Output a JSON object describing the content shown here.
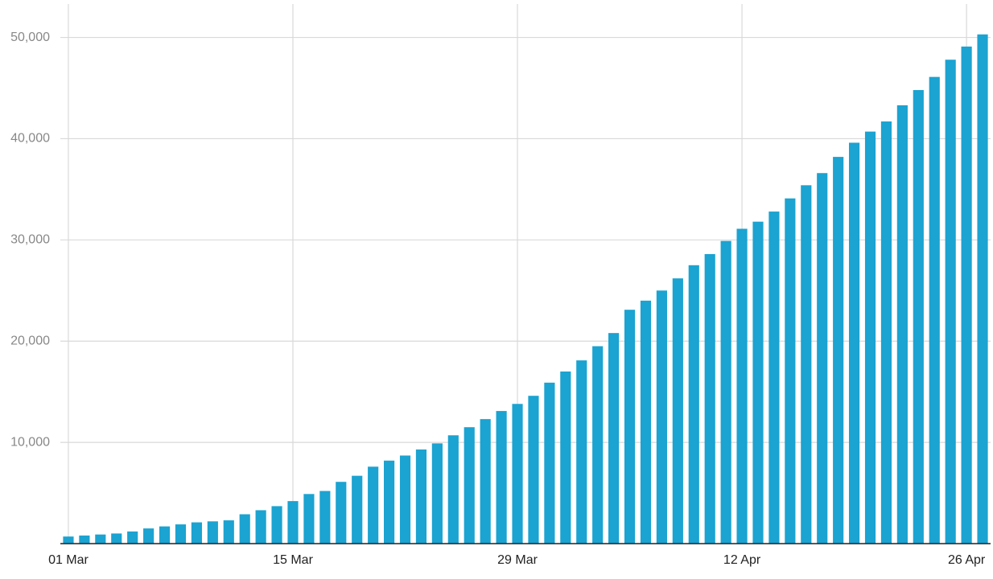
{
  "chart_data": {
    "type": "bar",
    "categories": [
      "01 Mar",
      null,
      null,
      null,
      null,
      null,
      null,
      null,
      null,
      null,
      null,
      null,
      null,
      null,
      "15 Mar",
      null,
      null,
      null,
      null,
      null,
      null,
      null,
      null,
      null,
      null,
      null,
      null,
      null,
      "29 Mar",
      null,
      null,
      null,
      null,
      null,
      null,
      null,
      null,
      null,
      null,
      null,
      null,
      null,
      "12 Apr",
      null,
      null,
      null,
      null,
      null,
      null,
      null,
      null,
      null,
      null,
      null,
      null,
      null,
      "26 Apr",
      null
    ],
    "values": [
      700,
      800,
      900,
      1000,
      1200,
      1500,
      1700,
      1900,
      2100,
      2200,
      2300,
      2900,
      3300,
      3700,
      4200,
      4900,
      5200,
      6100,
      6700,
      7600,
      8200,
      8700,
      9300,
      9900,
      10700,
      11500,
      12300,
      13100,
      13800,
      14600,
      15900,
      17000,
      18100,
      19500,
      20800,
      23100,
      24000,
      25000,
      26200,
      27500,
      28600,
      29900,
      31100,
      31800,
      32800,
      34100,
      35400,
      36600,
      38200,
      39600,
      40700,
      41700,
      43300,
      44800,
      46100,
      47800,
      49100,
      50300
    ],
    "color": "#1ba3d1",
    "ylim": [
      0,
      53300
    ],
    "yticks": [
      {
        "value": 10000,
        "label": "10,000"
      },
      {
        "value": 20000,
        "label": "20,000"
      },
      {
        "value": 30000,
        "label": "30,000"
      },
      {
        "value": 40000,
        "label": "40,000"
      },
      {
        "value": 50000,
        "label": "50,000"
      }
    ],
    "grid": true
  }
}
